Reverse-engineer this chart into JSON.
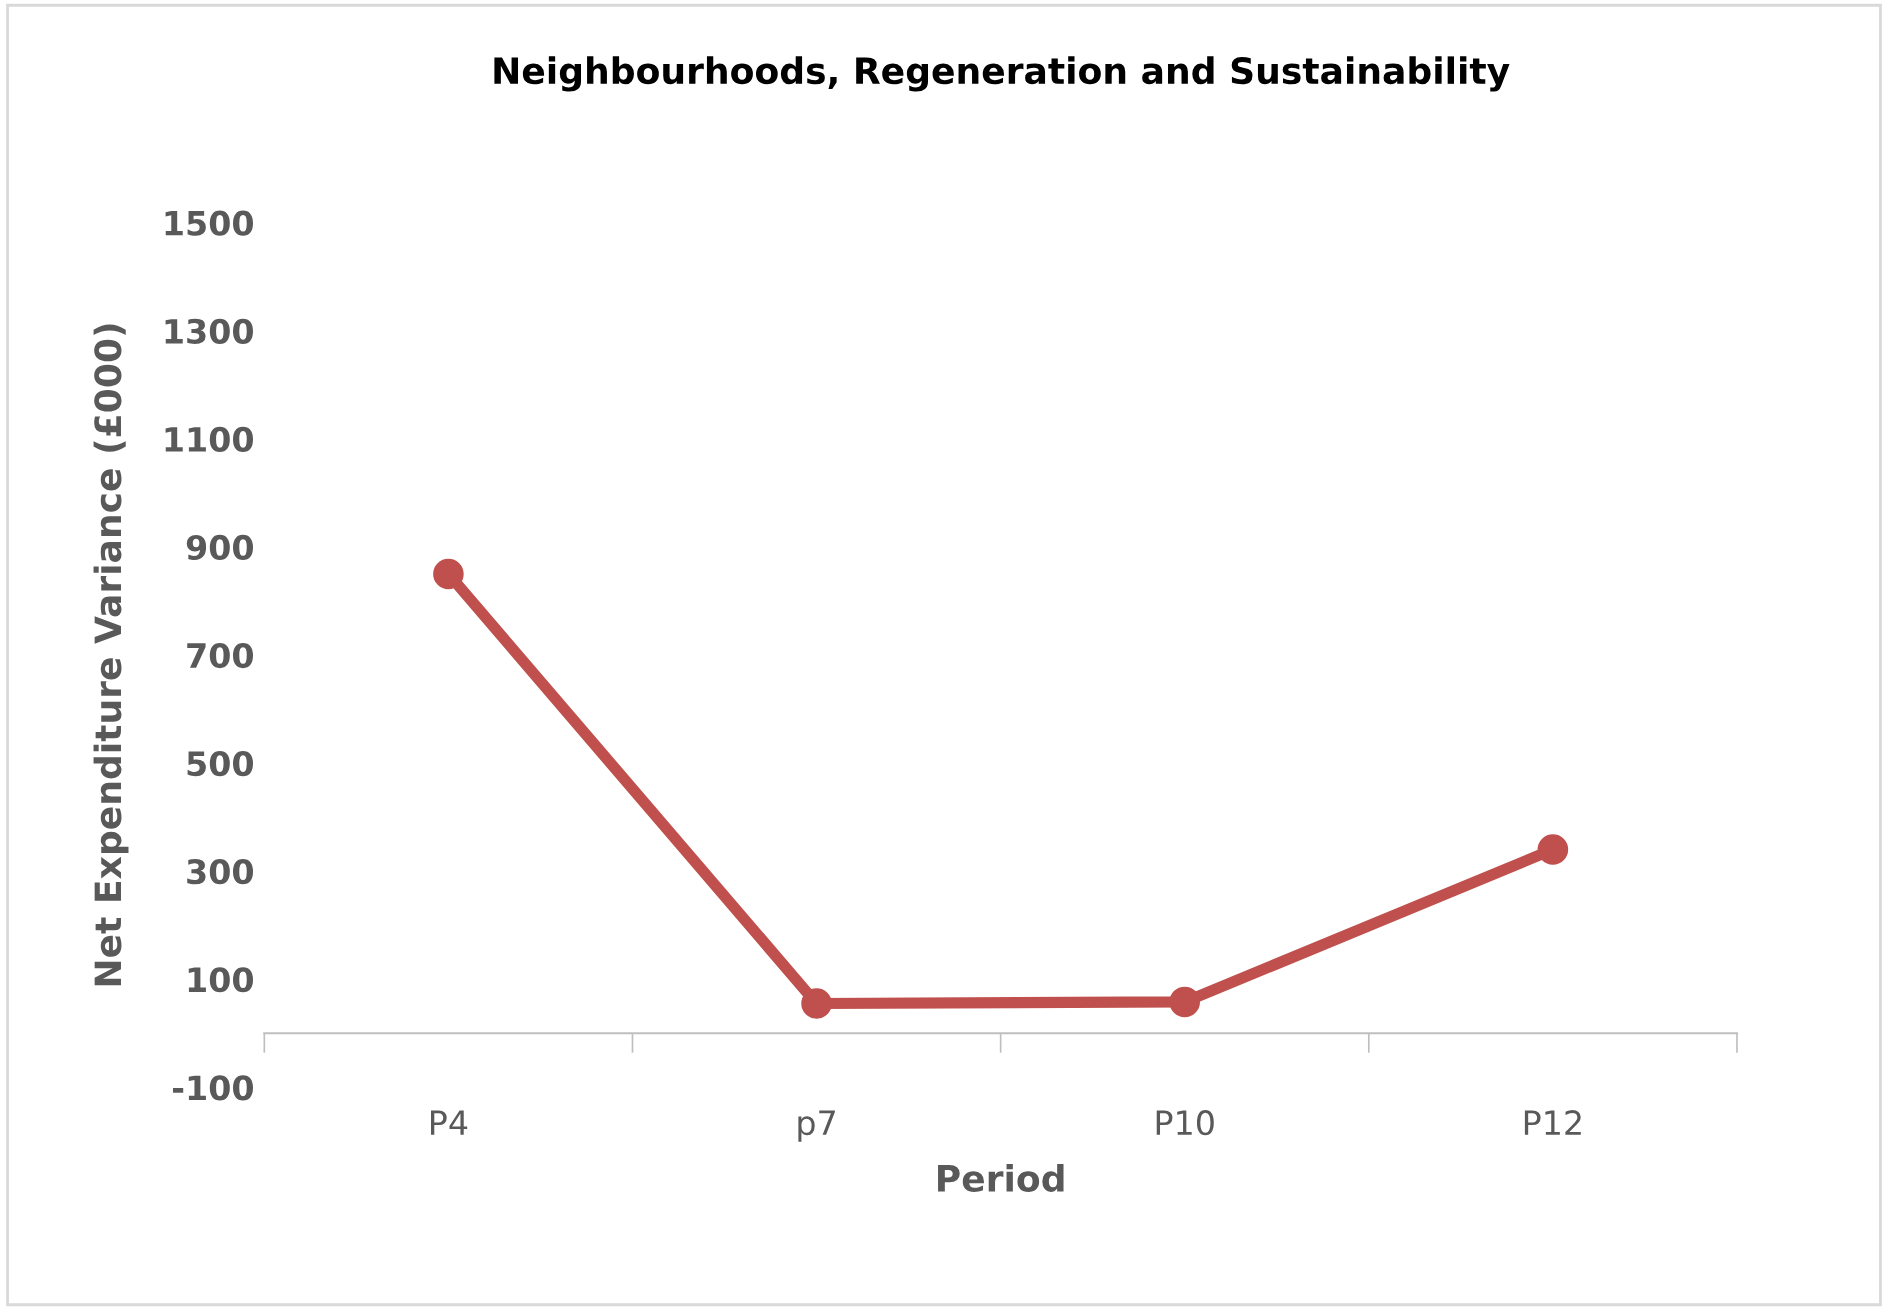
{
  "chart_data": {
    "type": "line",
    "title": "Neighbourhoods, Regeneration and Sustainability",
    "xlabel": "Period",
    "ylabel": "Net Expenditure Variance (£000)",
    "categories": [
      "P4",
      "p7",
      "P10",
      "P12"
    ],
    "series": [
      {
        "color": "#c0504d",
        "values": [
          850,
          55,
          58,
          340
        ]
      }
    ],
    "ylim": [
      -100,
      1500
    ],
    "yticks": [
      -100,
      100,
      300,
      500,
      700,
      900,
      1100,
      1300,
      1500
    ],
    "grid": false,
    "legend": false,
    "marker": "circle",
    "line_style": "solid"
  }
}
